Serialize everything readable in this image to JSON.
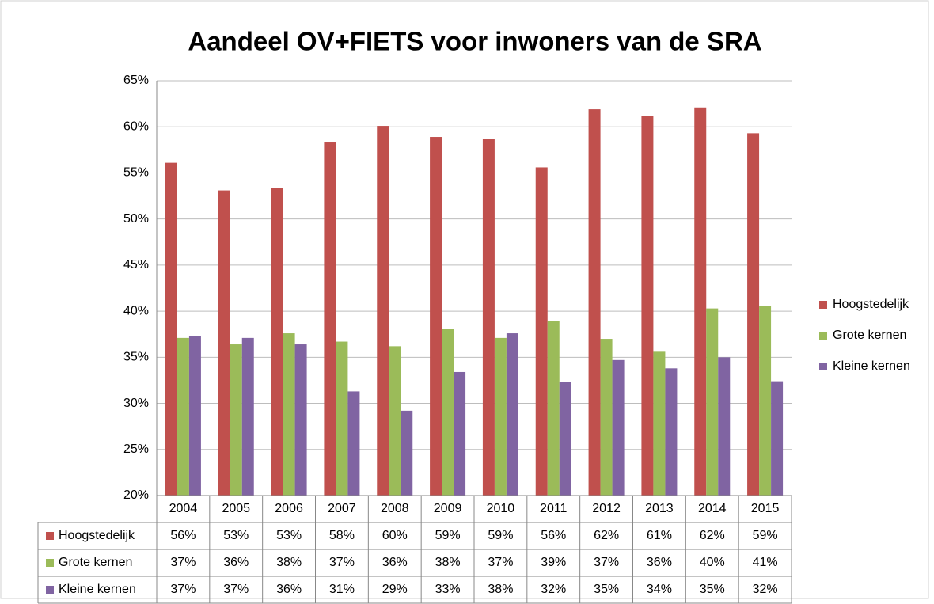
{
  "chart_data": {
    "type": "bar",
    "title": "Aandeel OV+FIETS voor inwoners van de SRA",
    "categories": [
      "2004",
      "2005",
      "2006",
      "2007",
      "2008",
      "2009",
      "2010",
      "2011",
      "2012",
      "2013",
      "2014",
      "2015"
    ],
    "series": [
      {
        "name": "Hoogstedelijk",
        "color": "#c0504d",
        "values": [
          56.1,
          53.1,
          53.4,
          58.3,
          60.1,
          58.9,
          58.7,
          55.6,
          61.9,
          61.2,
          62.1,
          59.3
        ],
        "value_labels": [
          "56%",
          "53%",
          "53%",
          "58%",
          "60%",
          "59%",
          "59%",
          "56%",
          "62%",
          "61%",
          "62%",
          "59%"
        ]
      },
      {
        "name": "Grote kernen",
        "color": "#9bbb59",
        "values": [
          37.1,
          36.4,
          37.6,
          36.7,
          36.2,
          38.1,
          37.1,
          38.9,
          37.0,
          35.6,
          40.3,
          40.6
        ],
        "value_labels": [
          "37%",
          "36%",
          "38%",
          "37%",
          "36%",
          "38%",
          "37%",
          "39%",
          "37%",
          "36%",
          "40%",
          "41%"
        ]
      },
      {
        "name": "Kleine kernen",
        "color": "#8064a2",
        "values": [
          37.3,
          37.1,
          36.4,
          31.3,
          29.2,
          33.4,
          37.6,
          32.3,
          34.7,
          33.8,
          35.0,
          32.4
        ],
        "value_labels": [
          "37%",
          "37%",
          "36%",
          "31%",
          "29%",
          "33%",
          "38%",
          "32%",
          "35%",
          "34%",
          "35%",
          "32%"
        ]
      }
    ],
    "ylim": [
      20,
      65
    ],
    "yticks": [
      {
        "value": 20,
        "label": "20%"
      },
      {
        "value": 25,
        "label": "25%"
      },
      {
        "value": 30,
        "label": "30%"
      },
      {
        "value": 35,
        "label": "35%"
      },
      {
        "value": 40,
        "label": "40%"
      },
      {
        "value": 45,
        "label": "45%"
      },
      {
        "value": 50,
        "label": "50%"
      },
      {
        "value": 55,
        "label": "55%"
      },
      {
        "value": 60,
        "label": "60%"
      },
      {
        "value": 65,
        "label": "65%"
      }
    ],
    "grid": true,
    "legend": "right"
  }
}
